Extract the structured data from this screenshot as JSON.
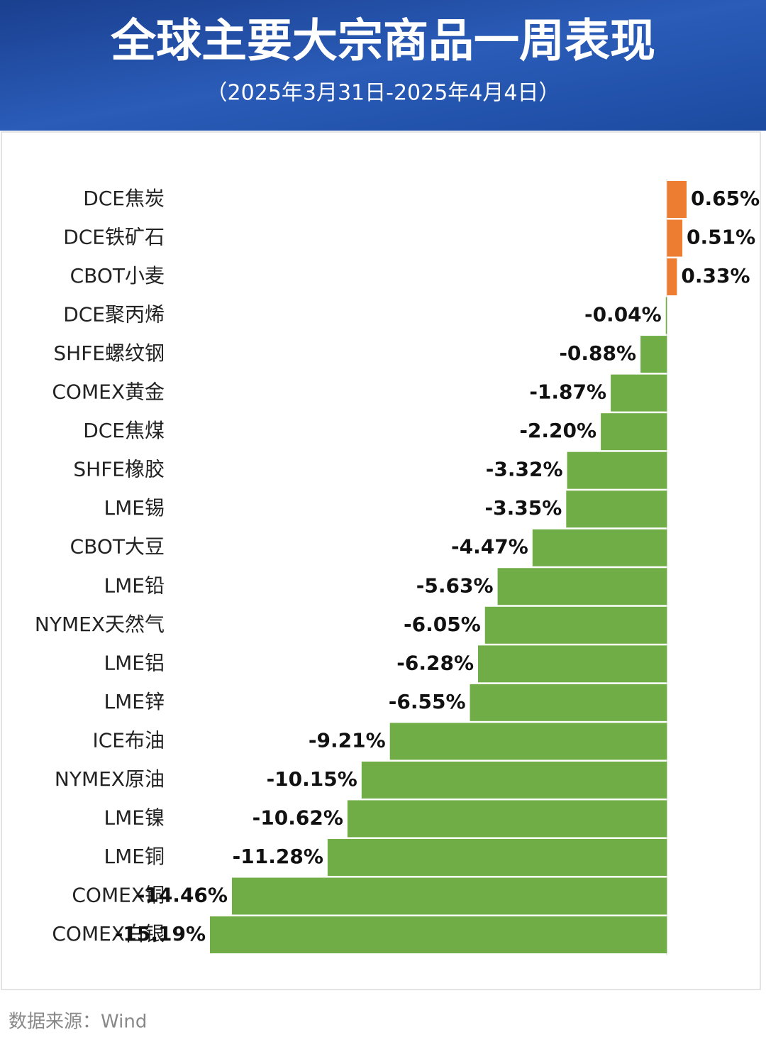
{
  "chart_data": {
    "type": "bar",
    "orientation": "horizontal",
    "title": "全球主要大宗商品一周表现",
    "subtitle": "（2025年3月31日-2025年4月4日）",
    "source": "数据来源：Wind",
    "categories": [
      "DCE焦炭",
      "DCE铁矿石",
      "CBOT小麦",
      "DCE聚丙烯",
      "SHFE螺纹钢",
      "COMEX黄金",
      "DCE焦煤",
      "SHFE橡胶",
      "LME锡",
      "CBOT大豆",
      "LME铅",
      "NYMEX天然气",
      "LME铝",
      "LME锌",
      "ICE布油",
      "NYMEX原油",
      "LME镍",
      "LME铜",
      "COMEX铜",
      "COMEX白银"
    ],
    "values": [
      0.65,
      0.51,
      0.33,
      -0.04,
      -0.88,
      -1.87,
      -2.2,
      -3.32,
      -3.35,
      -4.47,
      -5.63,
      -6.05,
      -6.28,
      -6.55,
      -9.21,
      -10.15,
      -10.62,
      -11.28,
      -14.46,
      -15.19
    ],
    "value_labels": [
      "0.65%",
      "0.51%",
      "0.33%",
      "-0.04%",
      "-0.88%",
      "-1.87%",
      "-2.20%",
      "-3.32%",
      "-3.35%",
      "-4.47%",
      "-5.63%",
      "-6.05%",
      "-6.28%",
      "-6.55%",
      "-9.21%",
      "-10.15%",
      "-10.62%",
      "-11.28%",
      "-14.46%",
      "-15.19%"
    ],
    "positive_color": "#ed7d31",
    "negative_color": "#70ad47"
  }
}
